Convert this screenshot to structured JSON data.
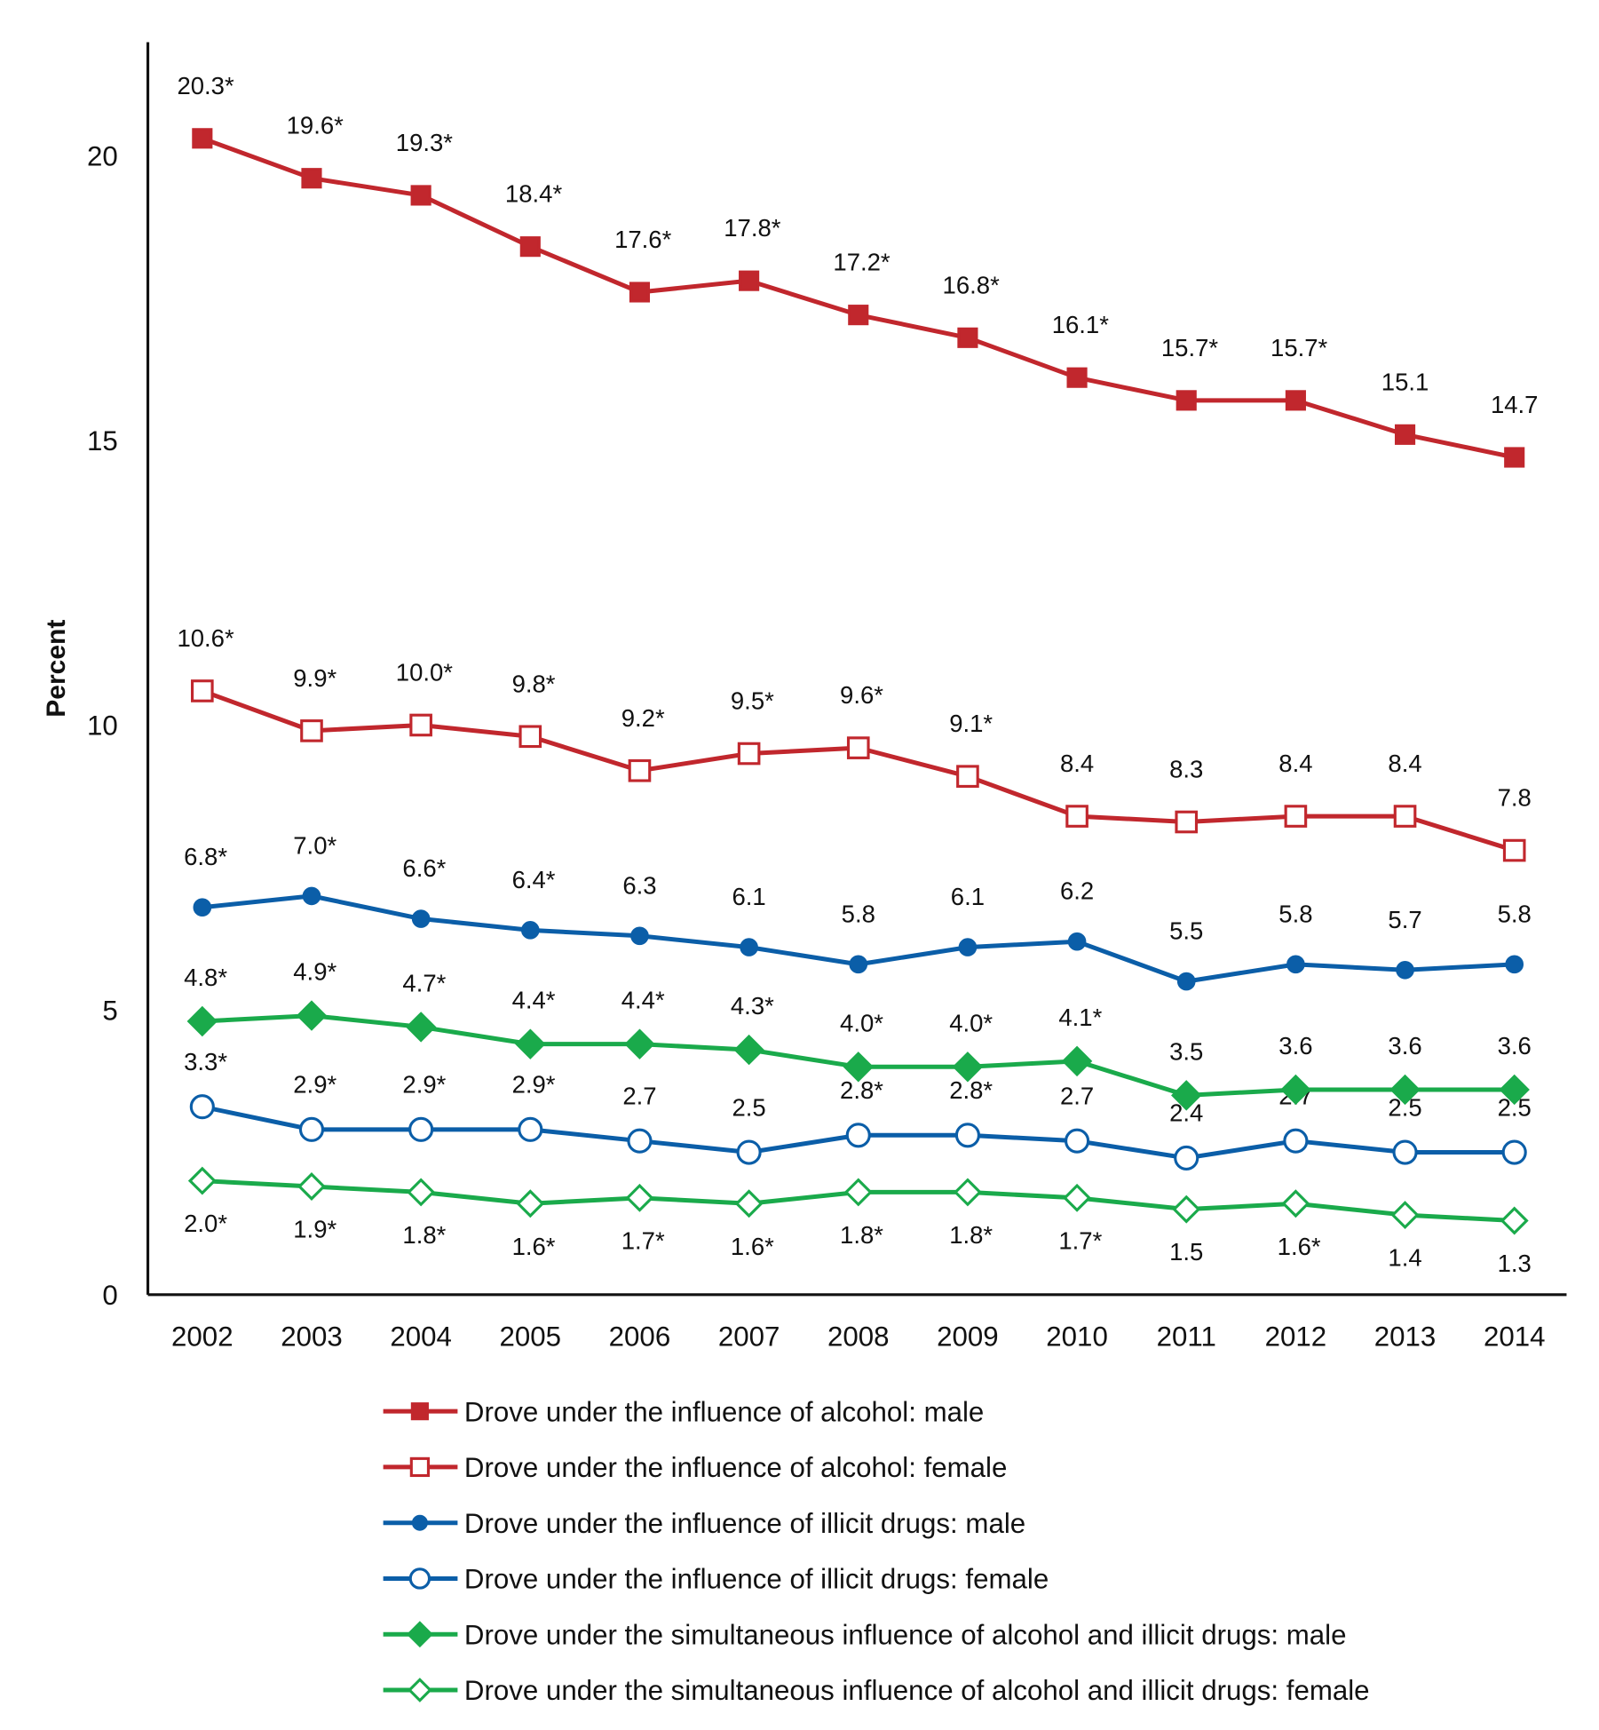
{
  "chart_data": {
    "type": "line",
    "title": "",
    "xlabel": "",
    "ylabel": "Percent",
    "ylim": [
      0,
      22
    ],
    "yticks": [
      0,
      5,
      10,
      15,
      20
    ],
    "grid": false,
    "legend_placement": "bottom",
    "x": [
      "2002",
      "2003",
      "2004",
      "2005",
      "2006",
      "2007",
      "2008",
      "2009",
      "2010",
      "2011",
      "2012",
      "2013",
      "2014"
    ],
    "series": [
      {
        "name": "Drove under the influence of alcohol: male",
        "color": "#c1272d",
        "marker": "filled-square",
        "values": [
          20.3,
          19.6,
          19.3,
          18.4,
          17.6,
          17.8,
          17.2,
          16.8,
          16.1,
          15.7,
          15.7,
          15.1,
          14.7
        ],
        "labels": [
          "20.3*",
          "19.6*",
          "19.3*",
          "18.4*",
          "17.6*",
          "17.8*",
          "17.2*",
          "16.8*",
          "16.1*",
          "15.7*",
          "15.7*",
          "15.1",
          "14.7"
        ]
      },
      {
        "name": "Drove under the influence of alcohol: female",
        "color": "#c1272d",
        "marker": "open-square",
        "values": [
          10.6,
          9.9,
          10.0,
          9.8,
          9.2,
          9.5,
          9.6,
          9.1,
          8.4,
          8.3,
          8.4,
          8.4,
          7.8
        ],
        "labels": [
          "10.6*",
          "9.9*",
          "10.0*",
          "9.8*",
          "9.2*",
          "9.5*",
          "9.6*",
          "9.1*",
          "8.4",
          "8.3",
          "8.4",
          "8.4",
          "7.8"
        ]
      },
      {
        "name": "Drove under the influence of illicit drugs: male",
        "color": "#0b5ea8",
        "marker": "filled-circle",
        "values": [
          6.8,
          7.0,
          6.6,
          6.4,
          6.3,
          6.1,
          5.8,
          6.1,
          6.2,
          5.5,
          5.8,
          5.7,
          5.8
        ],
        "labels": [
          "6.8*",
          "7.0*",
          "6.6*",
          "6.4*",
          "6.3",
          "6.1",
          "5.8",
          "6.1",
          "6.2",
          "5.5",
          "5.8",
          "5.7",
          "5.8"
        ]
      },
      {
        "name": "Drove under the influence of illicit drugs: female",
        "color": "#0b5ea8",
        "marker": "open-circle",
        "values": [
          3.3,
          2.9,
          2.9,
          2.9,
          2.7,
          2.5,
          2.8,
          2.8,
          2.7,
          2.4,
          2.7,
          2.5,
          2.5
        ],
        "labels": [
          "3.3*",
          "2.9*",
          "2.9*",
          "2.9*",
          "2.7",
          "2.5",
          "2.8*",
          "2.8*",
          "2.7",
          "2.4",
          "2.7",
          "2.5",
          "2.5"
        ]
      },
      {
        "name": "Drove under the simultaneous influence of alcohol and illicit drugs: male",
        "color": "#1aaa4b",
        "marker": "filled-diamond",
        "values": [
          4.8,
          4.9,
          4.7,
          4.4,
          4.4,
          4.3,
          4.0,
          4.0,
          4.1,
          3.5,
          3.6,
          3.6,
          3.6
        ],
        "labels": [
          "4.8*",
          "4.9*",
          "4.7*",
          "4.4*",
          "4.4*",
          "4.3*",
          "4.0*",
          "4.0*",
          "4.1*",
          "3.5",
          "3.6",
          "3.6",
          "3.6"
        ]
      },
      {
        "name": "Drove under the simultaneous influence of alcohol and illicit drugs: female",
        "color": "#1aaa4b",
        "marker": "open-diamond",
        "values": [
          2.0,
          1.9,
          1.8,
          1.6,
          1.7,
          1.6,
          1.8,
          1.8,
          1.7,
          1.5,
          1.6,
          1.4,
          1.3
        ],
        "labels": [
          "2.0*",
          "1.9*",
          "1.8*",
          "1.6*",
          "1.7*",
          "1.6*",
          "1.8*",
          "1.8*",
          "1.7*",
          "1.5",
          "1.6*",
          "1.4",
          "1.3"
        ]
      }
    ]
  }
}
